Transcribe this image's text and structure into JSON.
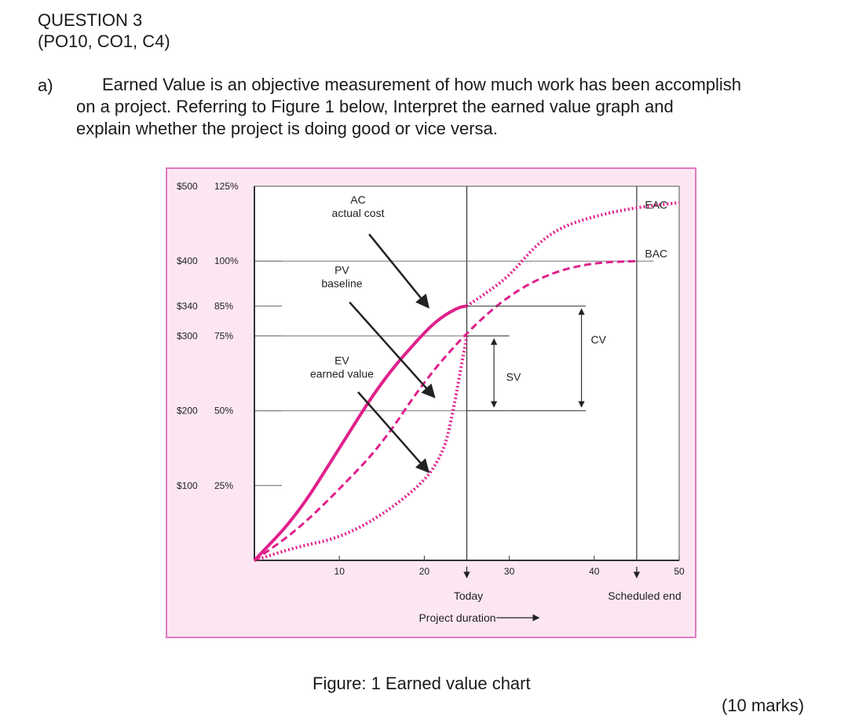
{
  "question": {
    "heading": "QUESTION 3",
    "codes": "(PO10, CO1, C4)",
    "part_label": "a)",
    "text_line1": "Earned Value is an objective measurement of how much work has been accomplish",
    "text_line2": "on a project. Referring to Figure 1 below, Interpret the earned value graph and",
    "text_line3": "explain whether the project is doing good or vice versa.",
    "marks": "(10 marks)"
  },
  "figure": {
    "caption": "Figure: 1 Earned value chart",
    "colors": {
      "frame_border": "#e07ac0",
      "frame_fill": "#fce6f3",
      "curve": "#e0208c",
      "axis": "#333333"
    }
  },
  "chart_data": {
    "type": "line",
    "title": "",
    "xlabel": "Project duration",
    "ylabel": "",
    "xlim": [
      0,
      50
    ],
    "ylim": [
      0,
      500
    ],
    "x_ticks": [
      10,
      20,
      30,
      40,
      50
    ],
    "y_ticks": [
      {
        "value": 500,
        "money": "$500",
        "pct": "125%"
      },
      {
        "value": 400,
        "money": "$400",
        "pct": "100%"
      },
      {
        "value": 340,
        "money": "$340",
        "pct": "85%"
      },
      {
        "value": 300,
        "money": "$300",
        "pct": "75%"
      },
      {
        "value": 200,
        "money": "$200",
        "pct": "50%"
      },
      {
        "value": 100,
        "money": "$100",
        "pct": "25%"
      }
    ],
    "markers": {
      "today": {
        "x": 25,
        "label": "Today"
      },
      "scheduled_end": {
        "x": 45,
        "label": "Scheduled end"
      }
    },
    "series": [
      {
        "name": "AC",
        "sublabel": "actual cost",
        "style": "solid",
        "x": [
          0,
          5,
          10,
          15,
          20,
          22,
          24,
          25
        ],
        "y": [
          0,
          60,
          150,
          240,
          305,
          325,
          338,
          340
        ]
      },
      {
        "name": "PV",
        "sublabel": "baseline",
        "style": "dashed",
        "x": [
          0,
          5,
          10,
          15,
          20,
          25,
          30,
          35,
          40,
          45
        ],
        "y": [
          0,
          40,
          95,
          155,
          240,
          305,
          355,
          385,
          398,
          400
        ]
      },
      {
        "name": "EV",
        "sublabel": "earned value",
        "style": "dotted",
        "x": [
          0,
          5,
          10,
          15,
          20,
          22,
          23,
          25
        ],
        "y": [
          0,
          18,
          30,
          60,
          105,
          140,
          175,
          300
        ]
      },
      {
        "name": "EAC forecast",
        "style": "dotted",
        "x": [
          25,
          27,
          30,
          33,
          36,
          40,
          45,
          50
        ],
        "y": [
          340,
          355,
          380,
          420,
          445,
          460,
          472,
          478
        ]
      }
    ],
    "annotations": {
      "sv": "SV",
      "cv": "CV",
      "eac": "EAC",
      "bac": "BAC"
    }
  }
}
